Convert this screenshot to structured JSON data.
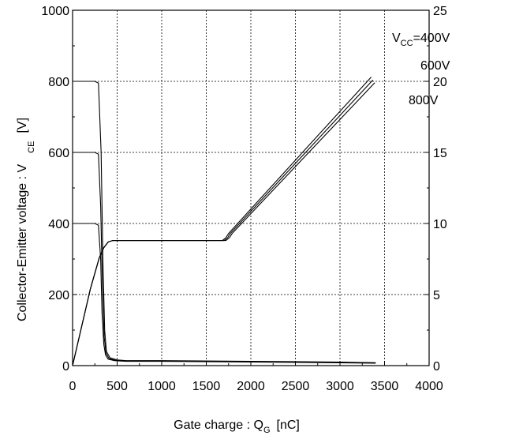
{
  "chart_data": {
    "type": "line",
    "xlabel": {
      "main": "Gate charge : Q",
      "sub": "G",
      "unit": "[nC]"
    },
    "ylabel": {
      "main": "Collector-Emitter voltage : V",
      "sub": "CE",
      "unit": "[V]"
    },
    "xlim": [
      0,
      4000
    ],
    "ylim": [
      0,
      1000
    ],
    "y2lim": [
      0,
      25
    ],
    "x_ticks": [
      "0",
      "500",
      "1000",
      "1500",
      "2000",
      "2500",
      "3000",
      "3500",
      "4000"
    ],
    "y_ticks": [
      "0",
      "200",
      "400",
      "600",
      "800",
      "1000"
    ],
    "y2_ticks": [
      "0",
      "5",
      "10",
      "15",
      "20",
      "25"
    ],
    "grid": true,
    "annotations": [
      {
        "text": "V",
        "sub": "CC",
        "rest": "=400V"
      },
      {
        "text": "600V"
      },
      {
        "text": "800V"
      }
    ],
    "series": [
      {
        "axis": "left",
        "x": [
          0,
          250,
          290,
          320,
          340,
          360,
          380,
          420,
          500,
          600,
          1000,
          2000,
          3000,
          3400
        ],
        "y": [
          800,
          800,
          795,
          600,
          300,
          100,
          40,
          22,
          16,
          14,
          14,
          12,
          10,
          8
        ]
      },
      {
        "axis": "left",
        "x": [
          0,
          250,
          290,
          315,
          335,
          355,
          375,
          410,
          480,
          600,
          1000,
          2000,
          3000,
          3400
        ],
        "y": [
          600,
          600,
          595,
          450,
          220,
          80,
          35,
          20,
          15,
          13,
          13,
          11,
          9,
          8
        ]
      },
      {
        "axis": "left",
        "x": [
          0,
          250,
          290,
          315,
          330,
          350,
          370,
          400,
          470,
          600,
          1000,
          2000,
          3000,
          3400
        ],
        "y": [
          400,
          400,
          395,
          300,
          150,
          60,
          30,
          18,
          14,
          12,
          12,
          10,
          8,
          7
        ]
      },
      {
        "axis": "right",
        "x": [
          0,
          100,
          200,
          300,
          350,
          400,
          450,
          500,
          1000,
          1600,
          1680,
          1720,
          1750,
          3350
        ],
        "y": [
          0,
          2.7,
          5.4,
          7.6,
          8.3,
          8.7,
          8.8,
          8.8,
          8.8,
          8.8,
          8.8,
          9.0,
          9.3,
          20.3
        ]
      },
      {
        "axis": "right",
        "x": [
          0,
          100,
          200,
          300,
          350,
          400,
          450,
          500,
          1000,
          1600,
          1700,
          1740,
          1770,
          3370
        ],
        "y": [
          0,
          2.7,
          5.4,
          7.6,
          8.3,
          8.7,
          8.8,
          8.8,
          8.8,
          8.8,
          8.8,
          9.0,
          9.3,
          20.1
        ]
      },
      {
        "axis": "right",
        "x": [
          0,
          100,
          200,
          300,
          350,
          400,
          450,
          500,
          1000,
          1600,
          1720,
          1760,
          1790,
          3390
        ],
        "y": [
          0,
          2.7,
          5.4,
          7.6,
          8.3,
          8.7,
          8.8,
          8.8,
          8.8,
          8.8,
          8.8,
          9.0,
          9.3,
          19.9
        ]
      }
    ]
  }
}
